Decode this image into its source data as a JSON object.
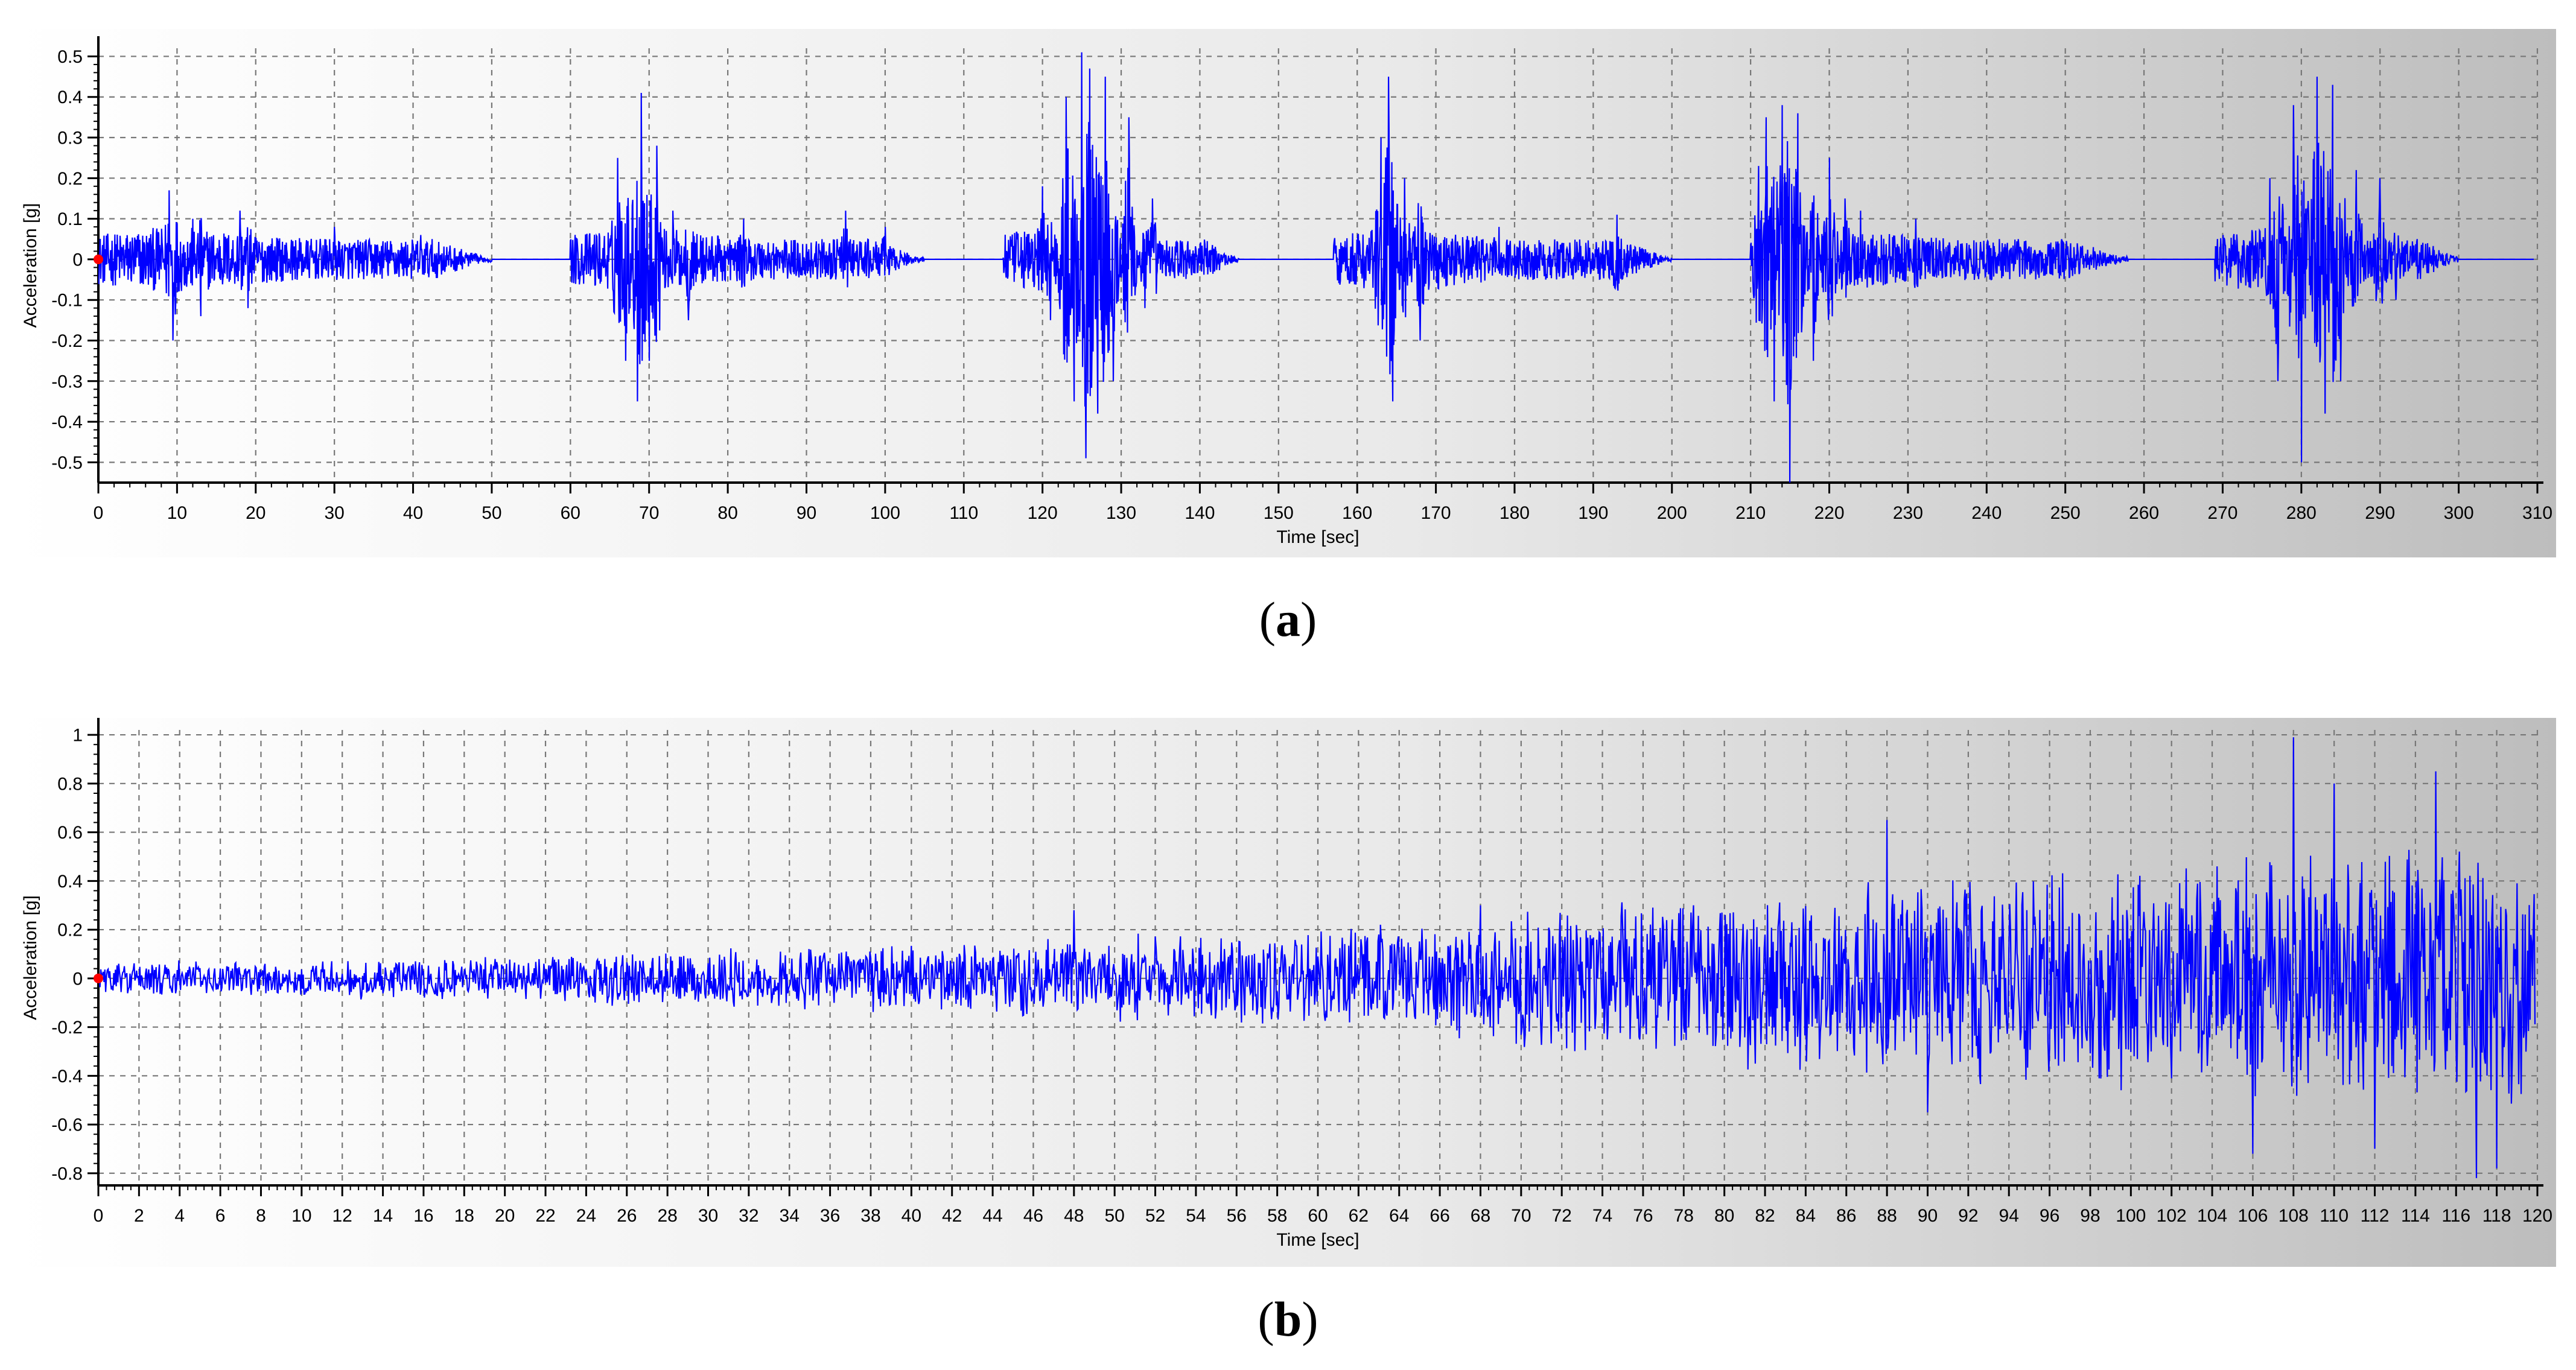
{
  "chart_data": [
    {
      "type": "line",
      "panel_label": "a",
      "title": "",
      "xlabel": "Time [sec]",
      "ylabel": "Acceleration [g]",
      "xlim": [
        0,
        310
      ],
      "ylim": [
        -0.55,
        0.52
      ],
      "xticks": [
        0,
        10,
        20,
        30,
        40,
        50,
        60,
        70,
        80,
        90,
        100,
        110,
        120,
        130,
        140,
        150,
        160,
        170,
        180,
        190,
        200,
        210,
        220,
        230,
        240,
        250,
        260,
        270,
        280,
        290,
        300,
        310
      ],
      "yticks": [
        0.5,
        0.4,
        0.3,
        0.2,
        0.1,
        0,
        -0.1,
        -0.2,
        -0.3,
        -0.4,
        -0.5
      ],
      "grid": true,
      "line_color": "#0000ff",
      "start_marker_color": "#ff0000",
      "series": [
        {
          "segments": [
            {
              "start": 0,
              "end": 50,
              "peaks": [
                [
                  9,
                  0.17
                ],
                [
                  9.5,
                  -0.2
                ],
                [
                  12,
                  0.1
                ],
                [
                  13,
                  -0.14
                ],
                [
                  18,
                  0.12
                ],
                [
                  19,
                  -0.12
                ],
                [
                  30,
                  0.08
                ],
                [
                  41,
                  0.06
                ]
              ]
            },
            {
              "start": 60,
              "end": 105,
              "peaks": [
                [
                  66,
                  0.25
                ],
                [
                  67,
                  -0.25
                ],
                [
                  69,
                  0.41
                ],
                [
                  68.5,
                  -0.35
                ],
                [
                  71,
                  0.28
                ],
                [
                  70,
                  -0.25
                ],
                [
                  73,
                  0.12
                ],
                [
                  75,
                  -0.15
                ],
                [
                  82,
                  0.1
                ],
                [
                  95,
                  0.12
                ],
                [
                  100,
                  0.08
                ]
              ]
            },
            {
              "start": 115,
              "end": 145,
              "peaks": [
                [
                  120,
                  0.18
                ],
                [
                  121,
                  -0.15
                ],
                [
                  123,
                  0.4
                ],
                [
                  124,
                  -0.35
                ],
                [
                  125,
                  0.51
                ],
                [
                  125.5,
                  -0.49
                ],
                [
                  126,
                  0.47
                ],
                [
                  127,
                  -0.38
                ],
                [
                  128,
                  0.45
                ],
                [
                  129,
                  -0.3
                ],
                [
                  131,
                  0.35
                ],
                [
                  133,
                  -0.12
                ],
                [
                  134,
                  0.15
                ]
              ]
            },
            {
              "start": 157,
              "end": 200,
              "peaks": [
                [
                  163,
                  0.3
                ],
                [
                  164,
                  0.45
                ],
                [
                  164.5,
                  -0.35
                ],
                [
                  166,
                  0.2
                ],
                [
                  168,
                  -0.2
                ],
                [
                  178,
                  0.08
                ],
                [
                  193,
                  0.11
                ]
              ]
            },
            {
              "start": 210,
              "end": 258,
              "peaks": [
                [
                  211,
                  0.23
                ],
                [
                  212,
                  0.35
                ],
                [
                  213,
                  -0.35
                ],
                [
                  214,
                  0.38
                ],
                [
                  215,
                  -0.55
                ],
                [
                  216,
                  0.36
                ],
                [
                  218,
                  -0.25
                ],
                [
                  220,
                  0.25
                ],
                [
                  222,
                  0.15
                ],
                [
                  224,
                  0.12
                ],
                [
                  231,
                  0.1
                ]
              ]
            },
            {
              "start": 269,
              "end": 300,
              "peaks": [
                [
                  276,
                  0.2
                ],
                [
                  277,
                  -0.3
                ],
                [
                  279,
                  0.38
                ],
                [
                  280,
                  -0.5
                ],
                [
                  282,
                  0.45
                ],
                [
                  283,
                  -0.38
                ],
                [
                  284,
                  0.43
                ],
                [
                  285,
                  -0.3
                ],
                [
                  287,
                  0.22
                ],
                [
                  290,
                  0.2
                ],
                [
                  292,
                  -0.1
                ]
              ]
            }
          ]
        }
      ]
    },
    {
      "type": "line",
      "panel_label": "b",
      "title": "",
      "xlabel": "Time [sec]",
      "ylabel": "Acceleration [g]",
      "xlim": [
        0,
        120
      ],
      "ylim": [
        -0.85,
        1.02
      ],
      "xticks": [
        0,
        2,
        4,
        6,
        8,
        10,
        12,
        14,
        16,
        18,
        20,
        22,
        24,
        26,
        28,
        30,
        32,
        34,
        36,
        38,
        40,
        42,
        44,
        46,
        48,
        50,
        52,
        54,
        56,
        58,
        60,
        62,
        64,
        66,
        68,
        70,
        72,
        74,
        76,
        78,
        80,
        82,
        84,
        86,
        88,
        90,
        92,
        94,
        96,
        98,
        100,
        102,
        104,
        106,
        108,
        110,
        112,
        114,
        116,
        118,
        120
      ],
      "yticks": [
        1,
        0.8,
        0.6,
        0.4,
        0.2,
        0,
        -0.2,
        -0.4,
        -0.6,
        -0.8
      ],
      "grid": true,
      "line_color": "#0000ff",
      "start_marker_color": "#ff0000",
      "series": [
        {
          "envelope": [
            [
              0,
              0.07
            ],
            [
              20,
              0.1
            ],
            [
              40,
              0.15
            ],
            [
              60,
              0.22
            ],
            [
              80,
              0.38
            ],
            [
              100,
              0.5
            ],
            [
              120,
              0.6
            ]
          ],
          "peaks": [
            [
              48,
              0.28
            ],
            [
              68,
              0.3
            ],
            [
              88,
              0.65
            ],
            [
              90,
              -0.55
            ],
            [
              106,
              -0.72
            ],
            [
              108,
              0.99
            ],
            [
              110,
              0.8
            ],
            [
              112,
              -0.7
            ],
            [
              115,
              0.85
            ],
            [
              117,
              -0.82
            ],
            [
              118,
              -0.78
            ]
          ]
        }
      ]
    }
  ],
  "captions": {
    "a_open": "(",
    "a_letter": "a",
    "a_close": ")",
    "b_open": "(",
    "b_letter": "b",
    "b_close": ")"
  }
}
